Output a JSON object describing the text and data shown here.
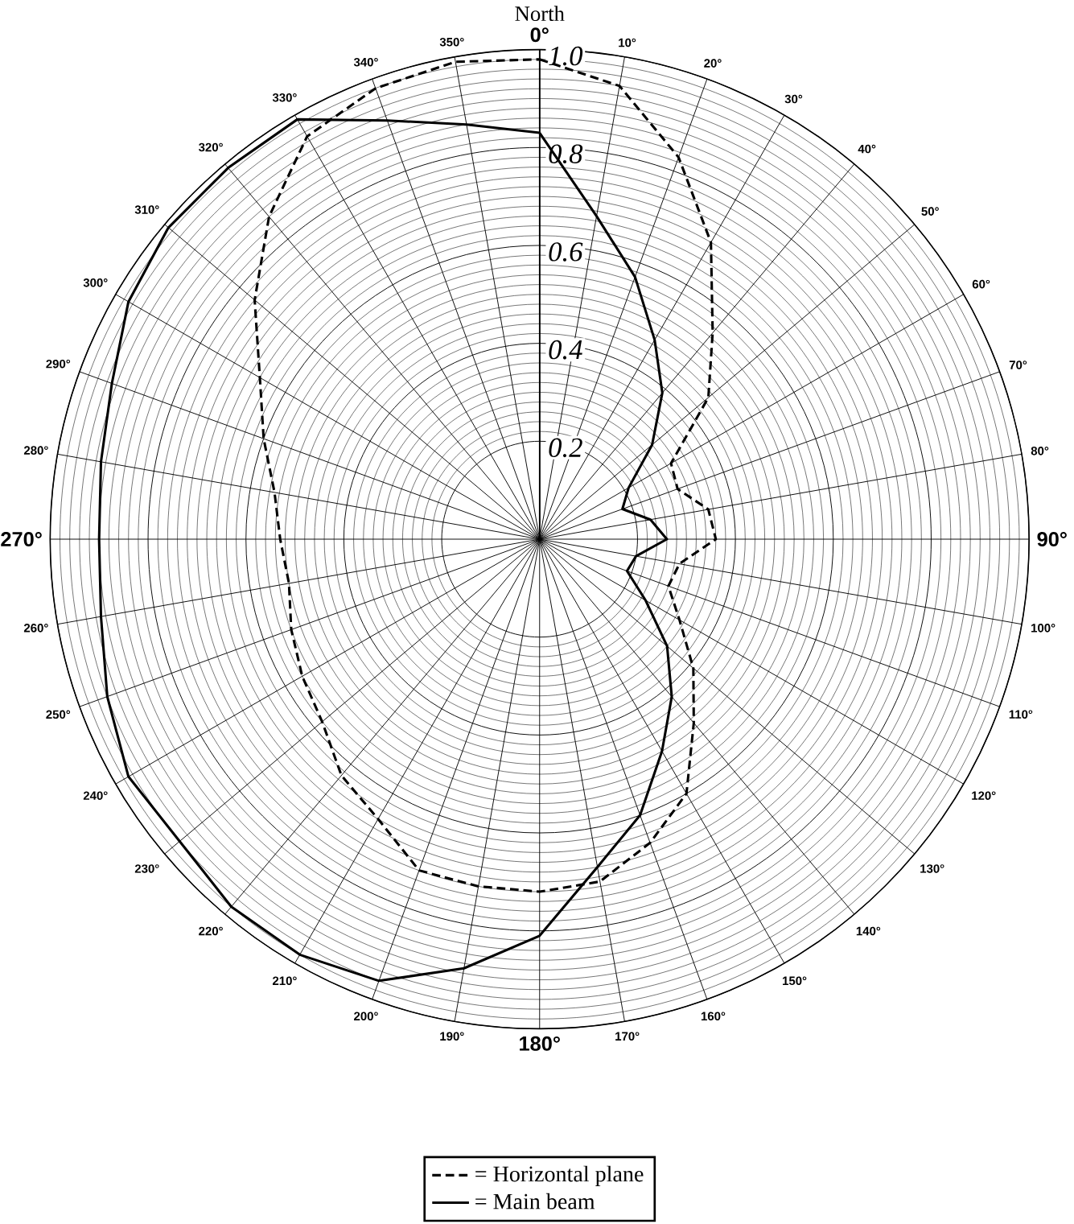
{
  "chart_data": {
    "type": "radar",
    "title": "North",
    "categories": [
      "0°",
      "10°",
      "20°",
      "30°",
      "40°",
      "50°",
      "60°",
      "70°",
      "80°",
      "90°",
      "100°",
      "110°",
      "120°",
      "130°",
      "140°",
      "150°",
      "160°",
      "170°",
      "180°",
      "190°",
      "200°",
      "210°",
      "220°",
      "230°",
      "240°",
      "250°",
      "260°",
      "270°",
      "280°",
      "290°",
      "300°",
      "310°",
      "320°",
      "330°",
      "340°",
      "350°"
    ],
    "ylim": [
      0,
      1
    ],
    "yticks": [
      0.2,
      0.4,
      0.6,
      0.8,
      {
        "value": 1,
        "label": "1.0"
      }
    ],
    "grid": true,
    "legend": "bottom",
    "series": [
      {
        "name": "= Horizontal plane",
        "color": "#000000",
        "line_style": "dashed",
        "values": [
          0.98,
          0.94,
          0.83,
          0.7,
          0.55,
          0.45,
          0.31,
          0.3,
          0.35,
          0.36,
          0.29,
          0.28,
          0.33,
          0.41,
          0.49,
          0.6,
          0.66,
          0.71,
          0.72,
          0.72,
          0.72,
          0.66,
          0.63,
          0.58,
          0.56,
          0.54,
          0.52,
          0.53,
          0.55,
          0.6,
          0.66,
          0.76,
          0.86,
          0.95,
          0.98,
          0.99
        ]
      },
      {
        "name": "= Main beam",
        "color": "#000000",
        "line_style": "solid",
        "values": [
          0.83,
          0.67,
          0.57,
          0.47,
          0.39,
          0.3,
          0.21,
          0.18,
          0.23,
          0.26,
          0.2,
          0.19,
          0.25,
          0.34,
          0.42,
          0.5,
          0.6,
          0.68,
          0.81,
          0.89,
          0.96,
          0.98,
          0.98,
          0.96,
          0.97,
          0.94,
          0.91,
          0.9,
          0.91,
          0.93,
          0.97,
          0.99,
          0.99,
          0.99,
          0.91,
          0.86
        ]
      }
    ]
  }
}
